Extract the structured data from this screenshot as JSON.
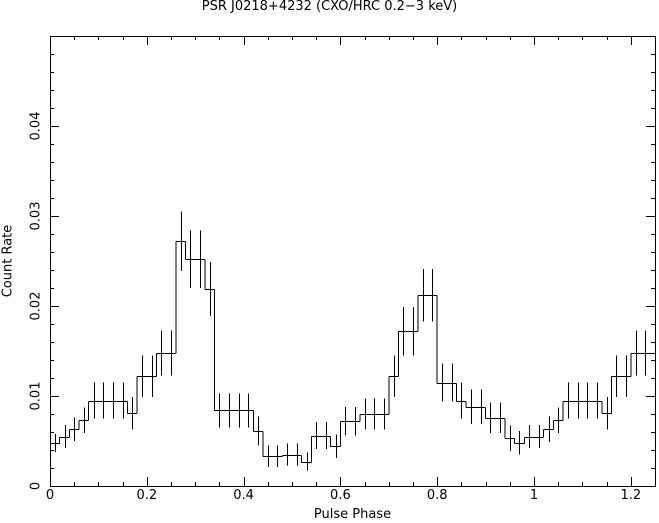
{
  "chart_data": {
    "type": "step",
    "title": "PSR J0218+4232 (CXO/HRC 0.2−3 keV)",
    "xlabel": "Pulse Phase",
    "ylabel": "Count Rate",
    "xlim": [
      0,
      1.25
    ],
    "ylim": [
      0,
      0.05
    ],
    "xticks": [
      0,
      0.2,
      0.4,
      0.6,
      0.8,
      1,
      1.2
    ],
    "xtick_labels": [
      "0",
      "0.2",
      "0.4",
      "0.6",
      "0.8",
      "1",
      "1.2"
    ],
    "yticks": [
      0,
      0.01,
      0.02,
      0.03,
      0.04
    ],
    "ytick_labels": [
      "0",
      "0.01",
      "0.02",
      "0.03",
      "0.04"
    ],
    "bin_width": 0.02,
    "bin_centers": [
      0.01,
      0.03,
      0.05,
      0.07,
      0.09,
      0.11,
      0.13,
      0.15,
      0.17,
      0.19,
      0.21,
      0.23,
      0.25,
      0.27,
      0.29,
      0.31,
      0.33,
      0.35,
      0.37,
      0.39,
      0.41,
      0.43,
      0.45,
      0.47,
      0.49,
      0.51,
      0.53,
      0.55,
      0.57,
      0.59,
      0.61,
      0.63,
      0.65,
      0.67,
      0.69,
      0.71,
      0.73,
      0.75,
      0.77,
      0.79,
      0.81,
      0.83,
      0.85,
      0.87,
      0.89,
      0.91,
      0.93,
      0.95,
      0.97,
      0.99,
      1.01,
      1.03,
      1.05,
      1.07,
      1.09,
      1.11,
      1.13,
      1.15,
      1.17,
      1.19,
      1.21,
      1.23,
      1.25
    ],
    "values": [
      0.0048,
      0.0055,
      0.0063,
      0.0073,
      0.0095,
      0.0095,
      0.0095,
      0.0095,
      0.0081,
      0.0122,
      0.0122,
      0.0148,
      0.0148,
      0.0272,
      0.0252,
      0.0252,
      0.0219,
      0.0084,
      0.0084,
      0.0084,
      0.0084,
      0.0061,
      0.0033,
      0.0033,
      0.0035,
      0.0035,
      0.0027,
      0.0056,
      0.0056,
      0.0044,
      0.0072,
      0.0072,
      0.008,
      0.008,
      0.008,
      0.0122,
      0.0172,
      0.0172,
      0.0212,
      0.0212,
      0.0115,
      0.0115,
      0.0095,
      0.0088,
      0.0088,
      0.0076,
      0.0076,
      0.0053,
      0.0048,
      0.0055,
      0.0055,
      0.0063,
      0.0073,
      0.0095,
      0.0095,
      0.0095,
      0.0095,
      0.0081,
      0.0122,
      0.0122,
      0.0148,
      0.0148,
      0.0148
    ],
    "errors": [
      0.001,
      0.0013,
      0.0013,
      0.0014,
      0.002,
      0.002,
      0.002,
      0.002,
      0.0018,
      0.0023,
      0.0023,
      0.0025,
      0.0025,
      0.0033,
      0.0032,
      0.0032,
      0.003,
      0.0019,
      0.0019,
      0.0019,
      0.0019,
      0.0016,
      0.0012,
      0.0012,
      0.0012,
      0.0012,
      0.001,
      0.0015,
      0.0015,
      0.0013,
      0.0016,
      0.0016,
      0.0017,
      0.0017,
      0.0017,
      0.0023,
      0.0027,
      0.0027,
      0.0029,
      0.0029,
      0.0021,
      0.0021,
      0.002,
      0.0019,
      0.0019,
      0.0017,
      0.0017,
      0.0014,
      0.0013,
      0.0013,
      0.0013,
      0.0014,
      0.0014,
      0.002,
      0.002,
      0.002,
      0.002,
      0.0018,
      0.0023,
      0.0023,
      0.0025,
      0.0025,
      0.0025
    ],
    "grid": false,
    "legend": "none",
    "color": "#000000"
  }
}
